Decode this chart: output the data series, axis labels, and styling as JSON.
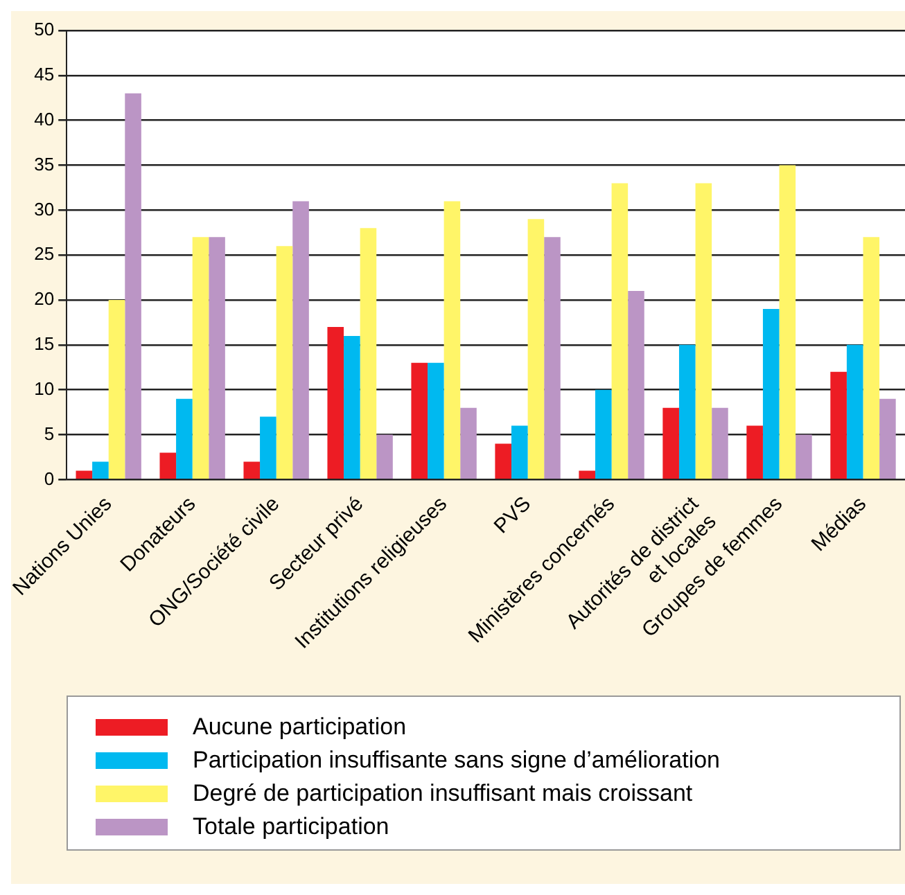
{
  "chart_data": {
    "type": "bar",
    "categories": [
      "Nations Unies",
      "Donateurs",
      "ONG/Société civile",
      "Secteur privé",
      "Institutions religieuses",
      "PVS",
      "Ministères concernés",
      "Autorités de district\net locales",
      "Groupes de femmes",
      "Médias"
    ],
    "series": [
      {
        "name": "Aucune participation",
        "color": "#ed1c24",
        "values": [
          1,
          3,
          2,
          17,
          13,
          4,
          1,
          8,
          6,
          12
        ]
      },
      {
        "name": "Participation insuffisante sans signe d’amélioration",
        "color": "#00b9f0",
        "values": [
          2,
          9,
          7,
          16,
          13,
          6,
          10,
          15,
          19,
          15
        ]
      },
      {
        "name": "Degré de participation insuffisant mais croissant",
        "color": "#fff568",
        "values": [
          20,
          27,
          26,
          28,
          31,
          29,
          33,
          33,
          35,
          27
        ]
      },
      {
        "name": "Totale participation",
        "color": "#bb95c5",
        "values": [
          43,
          27,
          31,
          5,
          8,
          27,
          21,
          8,
          5,
          9
        ]
      }
    ],
    "ylim": [
      0,
      50
    ],
    "yticks": [
      0,
      5,
      10,
      15,
      20,
      25,
      30,
      35,
      40,
      45,
      50
    ],
    "grid": "y",
    "legend": "bottom"
  }
}
